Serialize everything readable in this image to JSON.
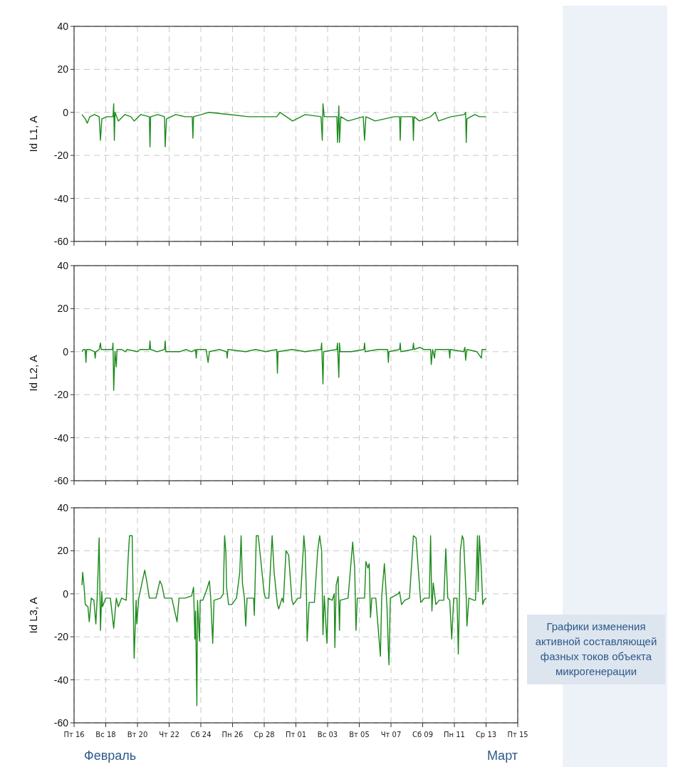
{
  "chart_data": [
    {
      "type": "line",
      "ylabel": "Id L1, A",
      "xlim": [
        "--02-16",
        "--03-15"
      ],
      "xticks": [
        {
          "value": "--02-16",
          "label": null
        },
        {
          "value": "--02-18",
          "label": null
        },
        {
          "value": "--02-20",
          "label": null
        },
        {
          "value": "--02-22",
          "label": null
        },
        {
          "value": "--02-24",
          "label": null
        },
        {
          "value": "--02-26",
          "label": null
        },
        {
          "value": "--02-28",
          "label": null
        },
        {
          "value": "--03-01",
          "label": null
        },
        {
          "value": "--03-03",
          "label": null
        },
        {
          "value": "--03-05",
          "label": null
        },
        {
          "value": "--03-07",
          "label": null
        },
        {
          "value": "--03-09",
          "label": null
        },
        {
          "value": "--03-11",
          "label": null
        },
        {
          "value": "--03-13",
          "label": null
        },
        {
          "value": "--03-15",
          "label": null
        }
      ],
      "ylim": [
        -60,
        40
      ],
      "yticks": [
        -60,
        -40,
        -20,
        0,
        20,
        40
      ],
      "grid": true,
      "tick_labels": "y",
      "series": [
        {
          "color": "#1a8a1a",
          "x": [
            "--02-16T12:00",
            "--02-16T17:00",
            "--02-16T20:00",
            "--02-17T00:00",
            "--02-17T07:00",
            "--02-17T14:00",
            "--02-17T16:00",
            "--02-17T18:00",
            "--02-18T02:00",
            "--02-18T11:00",
            "--02-18T12:00",
            "--02-18T13:00",
            "--02-18T14:00",
            "--02-18T19:00",
            "--02-19T05:00",
            "--02-19T14:00",
            "--02-19T19:00",
            "--02-20T05:00",
            "--02-20T18:00",
            "--02-20T19:00",
            "--02-20T20:00",
            "--02-21T07:00",
            "--02-21T17:00",
            "--02-21T18:00",
            "--02-21T20:00",
            "--02-22T10:00",
            "--02-23T00:00",
            "--02-23T11:00",
            "--02-23T12:00",
            "--02-23T13:00",
            "--02-24T12:00",
            "--02-25T19:00",
            "--02-27T00:00",
            "--02-28T19:00",
            "--02-29T00:00",
            "--02-29T19:00",
            "--03-01T14:00",
            "--03-02T14:00",
            "--03-02T16:00",
            "--03-02T17:00",
            "--03-02T19:00",
            "--03-03T14:00",
            "--03-03T15:00",
            "--03-03T17:00",
            "--03-03T18:00",
            "--03-03T20:00",
            "--03-04T07:00",
            "--03-05T06:00",
            "--03-05T08:00",
            "--03-05T10:00",
            "--03-06T00:00",
            "--03-07T05:00",
            "--03-07T13:00",
            "--03-07T14:00",
            "--03-07T15:00",
            "--03-08T09:00",
            "--03-08T10:00",
            "--03-08T11:00",
            "--03-08T19:00",
            "--03-09T12:00",
            "--03-09T19:00",
            "--03-10T00:00",
            "--03-10T19:00",
            "--03-11T15:00",
            "--03-11T17:00",
            "--03-11T18:00",
            "--03-11T19:00",
            "--03-12T07:00",
            "--03-12T14:00",
            "--03-13T00:00"
          ],
          "values": [
            -1,
            -3,
            -5,
            -2,
            -1,
            -2,
            -13,
            -3,
            -2,
            -2,
            4,
            -13,
            0,
            -4,
            -1,
            -2,
            -4,
            -1,
            -2,
            -16,
            -2,
            -1,
            -2,
            -16,
            -3,
            -1,
            -2,
            -2,
            -12,
            -2,
            0,
            -1,
            -2,
            -2,
            0,
            -4,
            -1,
            -2,
            -13,
            4,
            -2,
            -2,
            -14,
            3,
            -14,
            -2,
            -4,
            -2,
            -13,
            -2,
            -4,
            -2,
            -2,
            -13,
            -2,
            -2,
            -13,
            -2,
            -4,
            -2,
            0,
            -4,
            -2,
            -1,
            0,
            -14,
            -3,
            -1,
            -2,
            -2
          ]
        }
      ]
    },
    {
      "type": "line",
      "ylabel": "Id L2, A",
      "xlim": [
        "--02-16",
        "--03-15"
      ],
      "xticks": [
        {
          "value": "--02-16",
          "label": null
        },
        {
          "value": "--02-18",
          "label": null
        },
        {
          "value": "--02-20",
          "label": null
        },
        {
          "value": "--02-22",
          "label": null
        },
        {
          "value": "--02-24",
          "label": null
        },
        {
          "value": "--02-26",
          "label": null
        },
        {
          "value": "--02-28",
          "label": null
        },
        {
          "value": "--03-01",
          "label": null
        },
        {
          "value": "--03-03",
          "label": null
        },
        {
          "value": "--03-05",
          "label": null
        },
        {
          "value": "--03-07",
          "label": null
        },
        {
          "value": "--03-09",
          "label": null
        },
        {
          "value": "--03-11",
          "label": null
        },
        {
          "value": "--03-13",
          "label": null
        },
        {
          "value": "--03-15",
          "label": null
        }
      ],
      "ylim": [
        -60,
        40
      ],
      "yticks": [
        -60,
        -40,
        -20,
        0,
        20,
        40
      ],
      "grid": true,
      "tick_labels": "y",
      "series": [
        {
          "color": "#1a8a1a",
          "x": [
            "--02-16T12:00",
            "--02-16T14:00",
            "--02-16T17:00",
            "--02-16T18:00",
            "--02-16T19:00",
            "--02-17T00:00",
            "--02-17T07:00",
            "--02-17T08:00",
            "--02-17T09:00",
            "--02-17T14:00",
            "--02-17T16:00",
            "--02-17T17:00",
            "--02-18T02:00",
            "--02-18T10:00",
            "--02-18T11:00",
            "--02-18T12:00",
            "--02-18T14:00",
            "--02-18T16:00",
            "--02-18T17:00",
            "--02-19T00:00",
            "--02-19T06:00",
            "--02-19T08:00",
            "--02-20T00:00",
            "--02-20T04:00",
            "--02-20T18:00",
            "--02-20T19:00",
            "--02-20T20:00",
            "--02-21T06:00",
            "--02-21T17:00",
            "--02-21T18:00",
            "--02-21T19:00",
            "--02-22T16:00",
            "--02-23T02:00",
            "--02-23T10:00",
            "--02-23T16:00",
            "--02-23T17:00",
            "--02-23T18:00",
            "--02-24T08:00",
            "--02-24T11:00",
            "--02-24T13:00",
            "--02-25T04:00",
            "--02-25T15:00",
            "--02-25T16:00",
            "--02-25T17:00",
            "--02-26T20:00",
            "--02-27T11:00",
            "--02-28T02:00",
            "--02-28T19:00",
            "--02-28T20:00",
            "--02-28T21:00",
            "--02-29T18:00",
            "--03-01T14:00",
            "--03-02T14:00",
            "--03-02T15:00",
            "--03-02T17:00",
            "--03-02T18:00",
            "--03-03T14:00",
            "--03-03T15:00",
            "--03-03T17:00",
            "--03-03T18:00",
            "--03-03T19:00",
            "--03-04T12:00",
            "--03-05T07:00",
            "--03-05T08:00",
            "--03-05T09:00",
            "--03-06T04:00",
            "--03-06T19:00",
            "--03-06T20:00",
            "--03-06T21:00",
            "--03-07T13:00",
            "--03-07T14:00",
            "--03-07T15:00",
            "--03-08T09:00",
            "--03-08T10:00",
            "--03-08T11:00",
            "--03-08T20:00",
            "--03-09T02:00",
            "--03-09T12:00",
            "--03-09T13:00",
            "--03-09T15:00",
            "--03-09T18:00",
            "--03-09T19:00",
            "--03-10T16:00",
            "--03-10T17:00",
            "--03-10T18:00",
            "--03-11T14:00",
            "--03-11T16:00",
            "--03-11T17:00",
            "--03-11T19:00",
            "--03-12T10:00",
            "--03-12T17:00",
            "--03-12T18:00",
            "--03-13T00:00"
          ],
          "values": [
            0,
            1,
            1,
            -5,
            1,
            1,
            0,
            -3,
            0,
            1,
            4,
            1,
            1,
            1,
            4,
            -18,
            0,
            -7,
            1,
            1,
            0,
            1,
            0,
            1,
            1,
            5,
            1,
            0,
            1,
            5,
            0,
            0,
            1,
            0,
            1,
            -3,
            1,
            1,
            -5,
            0,
            1,
            0,
            -3,
            1,
            0,
            1,
            0,
            1,
            -10,
            0,
            1,
            0,
            1,
            4,
            -15,
            0,
            1,
            4,
            -12,
            4,
            0,
            0,
            1,
            4,
            0,
            1,
            1,
            -5,
            0,
            1,
            4,
            0,
            1,
            4,
            1,
            2,
            1,
            1,
            -6,
            1,
            -3,
            1,
            1,
            -3,
            1,
            0,
            2,
            -4,
            1,
            0,
            -3,
            1,
            1
          ]
        }
      ]
    },
    {
      "type": "line",
      "ylabel": "Id L3, A",
      "xlim": [
        "--02-16",
        "--03-15"
      ],
      "xticks": [
        {
          "value": "--02-16",
          "label": "Пт 16"
        },
        {
          "value": "--02-18",
          "label": "Вс 18"
        },
        {
          "value": "--02-20",
          "label": "Вт 20"
        },
        {
          "value": "--02-22",
          "label": "Чт 22"
        },
        {
          "value": "--02-24",
          "label": "Сб 24"
        },
        {
          "value": "--02-26",
          "label": "Пн 26"
        },
        {
          "value": "--02-28",
          "label": "Ср 28"
        },
        {
          "value": "--03-01",
          "label": "Пт 01"
        },
        {
          "value": "--03-03",
          "label": "Вс 03"
        },
        {
          "value": "--03-05",
          "label": "Вт 05"
        },
        {
          "value": "--03-07",
          "label": "Чт 07"
        },
        {
          "value": "--03-09",
          "label": "Сб 09"
        },
        {
          "value": "--03-11",
          "label": "Пн 11"
        },
        {
          "value": "--03-13",
          "label": "Ср 13"
        },
        {
          "value": "--03-15",
          "label": "Пт 15"
        }
      ],
      "ylim": [
        -60,
        40
      ],
      "yticks": [
        -60,
        -40,
        -20,
        0,
        20,
        40
      ],
      "grid": true,
      "annotations": [
        "Февраль",
        "Март",
        "Графики изменения активной составляющей фазных токов объекта микрогенерации"
      ],
      "series": [
        {
          "color": "#1a8a1a",
          "x": [
            "--02-16T12:00",
            "--02-16T13:00",
            "--02-16T15:00",
            "--02-16T17:00",
            "--02-16T21:00",
            "--02-16T23:00",
            "--02-17T02:00",
            "--02-17T06:00",
            "--02-17T09:00",
            "--02-17T11:00",
            "--02-17T14:00",
            "--02-17T16:00",
            "--02-17T18:00",
            "--02-17T19:00",
            "--02-18T00:00",
            "--02-18T07:00",
            "--02-18T12:00",
            "--02-18T16:00",
            "--02-18T19:00",
            "--02-19T00:00",
            "--02-19T07:00",
            "--02-19T10:00",
            "--02-19T12:00",
            "--02-19T16:00",
            "--02-19T19:00",
            "--02-19T22:00",
            "--02-19T23:00",
            "--02-20T02:00",
            "--02-20T11:00",
            "--02-20T14:00",
            "--02-20T18:00",
            "--02-20T23:00",
            "--02-21T04:00",
            "--02-21T10:00",
            "--02-21T13:00",
            "--02-21T17:00",
            "--02-22T04:00",
            "--02-22T12:00",
            "--02-22T15:00",
            "--02-23T00:00",
            "--02-23T10:00",
            "--02-23T13:00",
            "--02-23T15:00",
            "--02-23T16:00",
            "--02-23T18:00",
            "--02-23T19:00",
            "--02-23T22:00",
            "--02-23T23:00",
            "--02-24T03:00",
            "--02-24T09:00",
            "--02-24T13:00",
            "--02-24T15:00",
            "--02-24T18:00",
            "--02-24T20:00",
            "--02-25T06:00",
            "--02-25T10:00",
            "--02-25T12:00",
            "--02-25T14:00",
            "--02-25T15:00",
            "--02-25T18:00",
            "--02-25T23:00",
            "--02-26T06:00",
            "--02-26T11:00",
            "--02-26T13:00",
            "--02-26T15:00",
            "--02-26T18:00",
            "--02-26T20:00",
            "--02-26T22:00",
            "--02-27T07:00",
            "--02-27T08:00",
            "--02-27T09:00",
            "--02-27T12:00",
            "--02-27T15:00",
            "--02-28T00:00",
            "--02-28T02:00",
            "--02-28T07:00",
            "--02-28T12:00",
            "--02-28T15:00",
            "--02-28T20:00",
            "--02-28T22:00",
            "--02-29T03:00",
            "--02-29T05:00",
            "--02-29T09:00",
            "--02-29T13:00",
            "--02-29T18:00",
            "--02-29T20:00",
            "--03-01T03:00",
            "--03-01T07:00",
            "--03-01T11:00",
            "--03-01T12:00",
            "--03-01T14:00",
            "--03-01T16:00",
            "--03-01T17:00",
            "--03-01T20:00",
            "--03-02T04:00",
            "--03-02T09:00",
            "--03-02T12:00",
            "--03-02T15:00",
            "--03-02T17:00",
            "--03-02T19:00",
            "--03-02T23:00",
            "--03-03T01:00",
            "--03-03T07:00",
            "--03-03T10:00",
            "--03-03T11:00",
            "--03-03T13:00",
            "--03-03T16:00",
            "--03-03T18:00",
            "--03-03T19:00",
            "--03-04T07:00",
            "--03-04T14:00",
            "--03-04T17:00",
            "--03-04T19:00",
            "--03-04T21:00",
            "--03-05T03:00",
            "--03-05T08:00",
            "--03-05T10:00",
            "--03-05T13:00",
            "--03-05T15:00",
            "--03-05T17:00",
            "--03-05T19:00",
            "--03-06T01:00",
            "--03-06T08:00",
            "--03-06T10:00",
            "--03-06T14:00",
            "--03-06T18:00",
            "--03-06T20:00",
            "--03-06T21:00",
            "--03-06T23:00",
            "--03-07T11:00",
            "--03-07T13:00",
            "--03-07T16:00",
            "--03-07T21:00",
            "--03-08T04:00",
            "--03-08T10:00",
            "--03-08T14:00",
            "--03-08T21:00",
            "--03-09T03:00",
            "--03-09T10:00",
            "--03-09T12:00",
            "--03-09T14:00",
            "--03-09T16:00",
            "--03-09T20:00",
            "--03-10T01:00",
            "--03-10T08:00",
            "--03-10T11:00",
            "--03-10T14:00",
            "--03-10T17:00",
            "--03-10T20:00",
            "--03-10T23:00",
            "--03-11T04:00",
            "--03-11T06:00",
            "--03-11T09:00",
            "--03-11T12:00",
            "--03-11T14:00",
            "--03-11T18:00",
            "--03-11T19:00",
            "--03-11T22:00",
            "--03-12T06:00",
            "--03-12T08:00",
            "--03-12T11:00",
            "--03-12T12:00",
            "--03-12T14:00",
            "--03-12T17:00",
            "--03-12T19:00",
            "--03-12T21:00",
            "--03-13T00:00"
          ],
          "values": [
            4,
            10,
            4,
            -5,
            -6,
            -13,
            -2,
            -3,
            -14,
            -2,
            26,
            -17,
            1,
            -6,
            -2,
            -2,
            -16,
            -2,
            -6,
            -2,
            -3,
            17,
            27,
            27,
            -30,
            -3,
            -14,
            -2,
            11,
            6,
            -2,
            -2,
            -2,
            6,
            4,
            -2,
            -2,
            -13,
            -2,
            -2,
            -1,
            3,
            -21,
            -8,
            -52,
            -3,
            -22,
            -3,
            -3,
            2,
            6,
            -2,
            -23,
            -3,
            -2,
            0,
            27,
            19,
            3,
            -5,
            -5,
            -2,
            10,
            27,
            5,
            -2,
            -15,
            -2,
            -2,
            -2,
            -10,
            27,
            27,
            0,
            -2,
            -2,
            27,
            10,
            -5,
            -7,
            -2,
            -4,
            20,
            18,
            -3,
            -5,
            -2,
            -2,
            20,
            27,
            20,
            -1,
            -22,
            -4,
            -4,
            20,
            27,
            20,
            -19,
            -1,
            -23,
            -2,
            -3,
            0,
            -25,
            4,
            8,
            -17,
            -3,
            -2,
            24,
            12,
            -17,
            -2,
            -2,
            -2,
            15,
            12,
            14,
            -11,
            -2,
            -2,
            -29,
            -1,
            14,
            -6,
            -26,
            -33,
            -2,
            0,
            1,
            -5,
            -3,
            -2,
            27,
            26,
            -4,
            -2,
            -2,
            27,
            -8,
            5,
            -5,
            -3,
            -3,
            21,
            -2,
            -3,
            -21,
            -2,
            -2,
            -28,
            20,
            27,
            25,
            -2,
            -15,
            -2,
            -3,
            -3,
            27,
            1,
            27,
            10,
            -5,
            -3,
            -2
          ]
        }
      ]
    }
  ]
}
